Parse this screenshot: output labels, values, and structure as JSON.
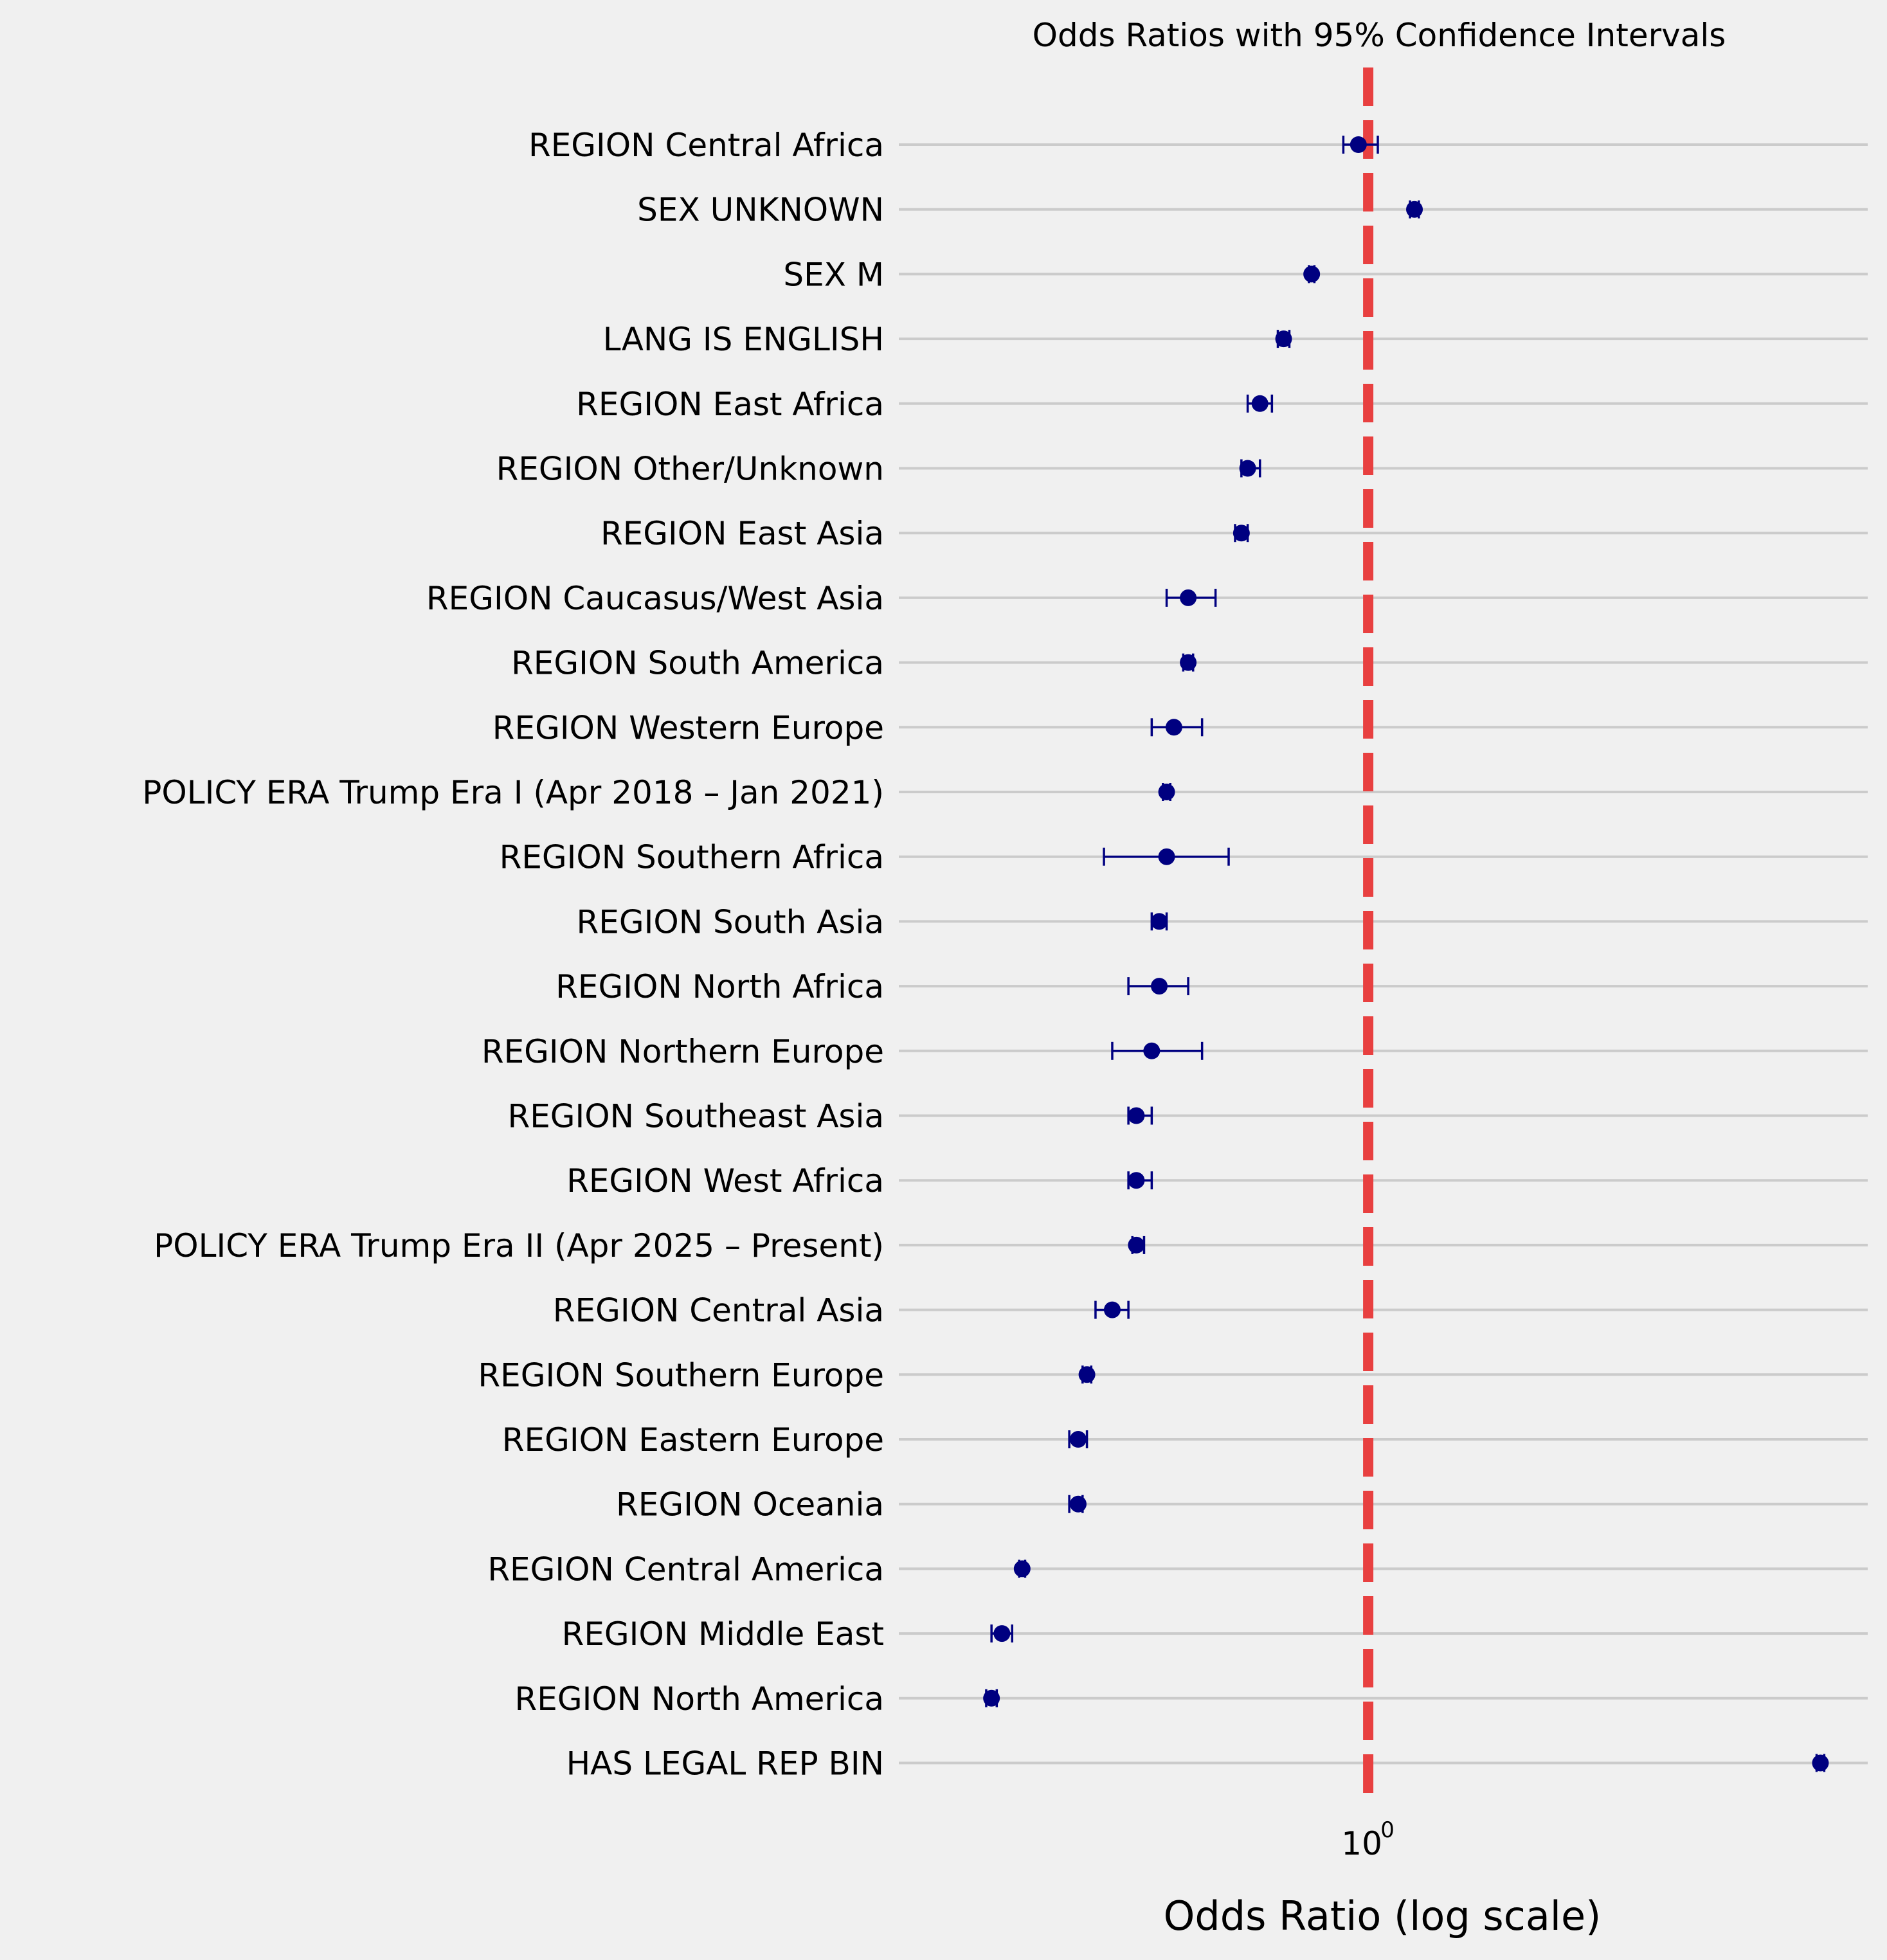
{
  "chart_data": {
    "type": "scatter",
    "title": "Odds Ratios with 95% Confidence Intervals",
    "xlabel": "Odds Ratio (log scale)",
    "ylabel": "",
    "x_scale": "log",
    "xlim": [
      0.38,
      2.8
    ],
    "x_ticks": [
      {
        "value": 1,
        "base": "10",
        "exponent": "0"
      }
    ],
    "reference_line": {
      "x": 1,
      "color": "#e84040",
      "style": "dashed"
    },
    "marker_color": "#000080",
    "grid": "horizontal",
    "items": [
      {
        "label": "REGION Central Africa",
        "or": 0.98,
        "lo": 0.95,
        "hi": 1.02
      },
      {
        "label": "SEX UNKNOWN",
        "or": 1.1,
        "lo": 1.09,
        "hi": 1.11
      },
      {
        "label": "SEX M",
        "or": 0.89,
        "lo": 0.885,
        "hi": 0.895
      },
      {
        "label": "LANG IS ENGLISH",
        "or": 0.84,
        "lo": 0.83,
        "hi": 0.85
      },
      {
        "label": "REGION East Africa",
        "or": 0.8,
        "lo": 0.78,
        "hi": 0.82
      },
      {
        "label": "REGION Other/Unknown",
        "or": 0.78,
        "lo": 0.77,
        "hi": 0.8
      },
      {
        "label": "REGION East Asia",
        "or": 0.77,
        "lo": 0.76,
        "hi": 0.78
      },
      {
        "label": "REGION Caucasus/West Asia",
        "or": 0.69,
        "lo": 0.66,
        "hi": 0.73
      },
      {
        "label": "REGION South America",
        "or": 0.69,
        "lo": 0.683,
        "hi": 0.697
      },
      {
        "label": "REGION Western Europe",
        "or": 0.67,
        "lo": 0.64,
        "hi": 0.71
      },
      {
        "label": "POLICY ERA Trump Era I (Apr 2018 – Jan 2021)",
        "or": 0.66,
        "lo": 0.655,
        "hi": 0.665
      },
      {
        "label": "REGION Southern Africa",
        "or": 0.66,
        "lo": 0.58,
        "hi": 0.75
      },
      {
        "label": "REGION South Asia",
        "or": 0.65,
        "lo": 0.64,
        "hi": 0.66
      },
      {
        "label": "REGION North Africa",
        "or": 0.65,
        "lo": 0.61,
        "hi": 0.69
      },
      {
        "label": "REGION Northern Europe",
        "or": 0.64,
        "lo": 0.59,
        "hi": 0.71
      },
      {
        "label": "REGION Southeast Asia",
        "or": 0.62,
        "lo": 0.61,
        "hi": 0.64
      },
      {
        "label": "REGION West Africa",
        "or": 0.62,
        "lo": 0.61,
        "hi": 0.64
      },
      {
        "label": "POLICY ERA Trump Era II (Apr 2025 – Present)",
        "or": 0.62,
        "lo": 0.615,
        "hi": 0.63
      },
      {
        "label": "REGION Central Asia",
        "or": 0.59,
        "lo": 0.57,
        "hi": 0.61
      },
      {
        "label": "REGION Southern Europe",
        "or": 0.56,
        "lo": 0.555,
        "hi": 0.565
      },
      {
        "label": "REGION Eastern Europe",
        "or": 0.55,
        "lo": 0.54,
        "hi": 0.56
      },
      {
        "label": "REGION Oceania",
        "or": 0.55,
        "lo": 0.54,
        "hi": 0.555
      },
      {
        "label": "REGION Central America",
        "or": 0.49,
        "lo": 0.487,
        "hi": 0.493
      },
      {
        "label": "REGION Middle East",
        "or": 0.47,
        "lo": 0.46,
        "hi": 0.48
      },
      {
        "label": "REGION North America",
        "or": 0.46,
        "lo": 0.455,
        "hi": 0.465
      },
      {
        "label": "HAS LEGAL REP BIN",
        "or": 2.54,
        "lo": 2.52,
        "hi": 2.56
      }
    ]
  }
}
